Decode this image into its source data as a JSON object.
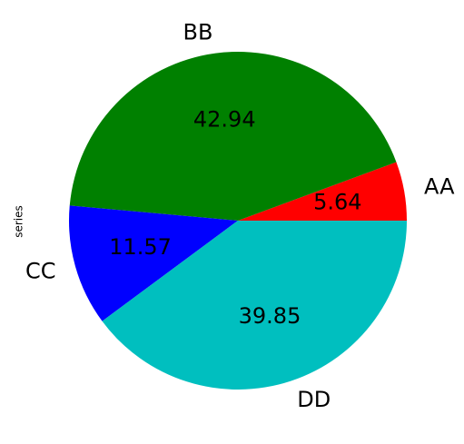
{
  "chart_data": {
    "type": "pie",
    "ylabel": "series",
    "categories": [
      "AA",
      "BB",
      "CC",
      "DD"
    ],
    "values": [
      5.64,
      42.94,
      11.57,
      39.85
    ],
    "value_labels": [
      "5.64",
      "42.94",
      "11.57",
      "39.85"
    ],
    "colors": [
      "#ff0000",
      "#008000",
      "#0000ff",
      "#00bfbf"
    ],
    "start_angle": 0,
    "direction": "counterclockwise",
    "legend": "none"
  }
}
